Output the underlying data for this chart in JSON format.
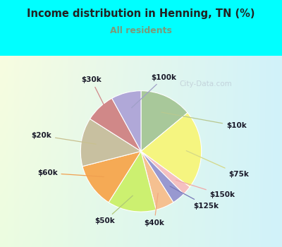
{
  "title": "Income distribution in Henning, TN (%)",
  "subtitle": "All residents",
  "title_color": "#222222",
  "subtitle_color": "#7a9a7a",
  "background_color": "#00ffff",
  "watermark": "City-Data.com",
  "labels": [
    "$10k",
    "$75k",
    "$150k",
    "$125k",
    "$40k",
    "$50k",
    "$60k",
    "$20k",
    "$30k",
    "$100k"
  ],
  "values": [
    14.0,
    21.0,
    2.5,
    3.5,
    5.0,
    13.0,
    12.0,
    13.0,
    8.0,
    8.0
  ],
  "colors": [
    "#a8c89a",
    "#f5f580",
    "#f5c0c0",
    "#9898d0",
    "#f5c090",
    "#ccf070",
    "#f5aa55",
    "#c8c0a0",
    "#d08888",
    "#b0a8d8"
  ],
  "connector_colors": [
    "#b8c890",
    "#d4d888",
    "#f0a8a8",
    "#7878b8",
    "#f0aa80",
    "#b0c878",
    "#f0a050",
    "#c8c090",
    "#d08888",
    "#a0a0c8"
  ],
  "label_positions_x": [
    1.58,
    1.62,
    1.35,
    1.08,
    0.22,
    -0.6,
    -1.55,
    -1.65,
    -0.82,
    0.38
  ],
  "label_positions_y": [
    0.42,
    -0.38,
    -0.72,
    -0.9,
    -1.18,
    -1.15,
    -0.36,
    0.26,
    1.18,
    1.22
  ]
}
